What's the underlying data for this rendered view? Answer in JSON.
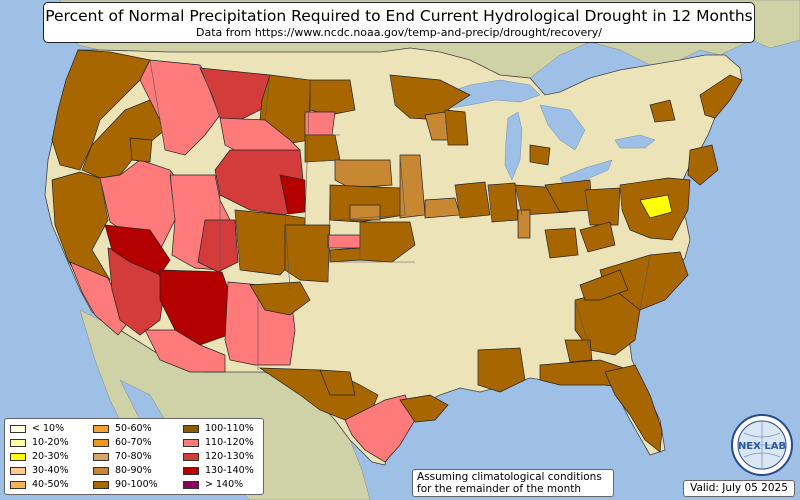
{
  "title": "Percent of Normal Precipitation Required to End Current Hydrological Drought in 12 Months",
  "subtitle": "Data from https://www.ncdc.noaa.gov/temp-and-precip/drought/recovery/",
  "note_line1": "Assuming climatological conditions",
  "note_line2": "for the remainder of the month",
  "valid": "Valid: July 05 2025",
  "logo_text": "NEX LAB",
  "legend": [
    {
      "label": "< 10%",
      "color": "#fffde0"
    },
    {
      "label": "10-20%",
      "color": "#ffffa0"
    },
    {
      "label": "20-30%",
      "color": "#ffff00"
    },
    {
      "label": "30-40%",
      "color": "#fcca8c"
    },
    {
      "label": "40-50%",
      "color": "#fbb05a"
    },
    {
      "label": "50-60%",
      "color": "#f2a233"
    },
    {
      "label": "60-70%",
      "color": "#f0961c"
    },
    {
      "label": "70-80%",
      "color": "#d9a56a"
    },
    {
      "label": "80-90%",
      "color": "#c78733"
    },
    {
      "label": "90-100%",
      "color": "#a86600"
    },
    {
      "label": "100-110%",
      "color": "#8b5b00"
    },
    {
      "label": "110-120%",
      "color": "#ff7a7a"
    },
    {
      "label": "120-130%",
      "color": "#d43c3c"
    },
    {
      "label": "130-140%",
      "color": "#b40000"
    },
    {
      "label": "> 140%",
      "color": "#8b0058"
    }
  ],
  "colors": {
    "ocean": "#9ec0e6",
    "land": "#ece3b8",
    "foreign_land": "#cfd2a6",
    "brown": "#a86600",
    "dark_brown": "#8b5b00",
    "light_red": "#ff7a7a",
    "red": "#d43c3c",
    "dark_red": "#b40000",
    "tan": "#c78733",
    "yellow": "#ffff00"
  }
}
